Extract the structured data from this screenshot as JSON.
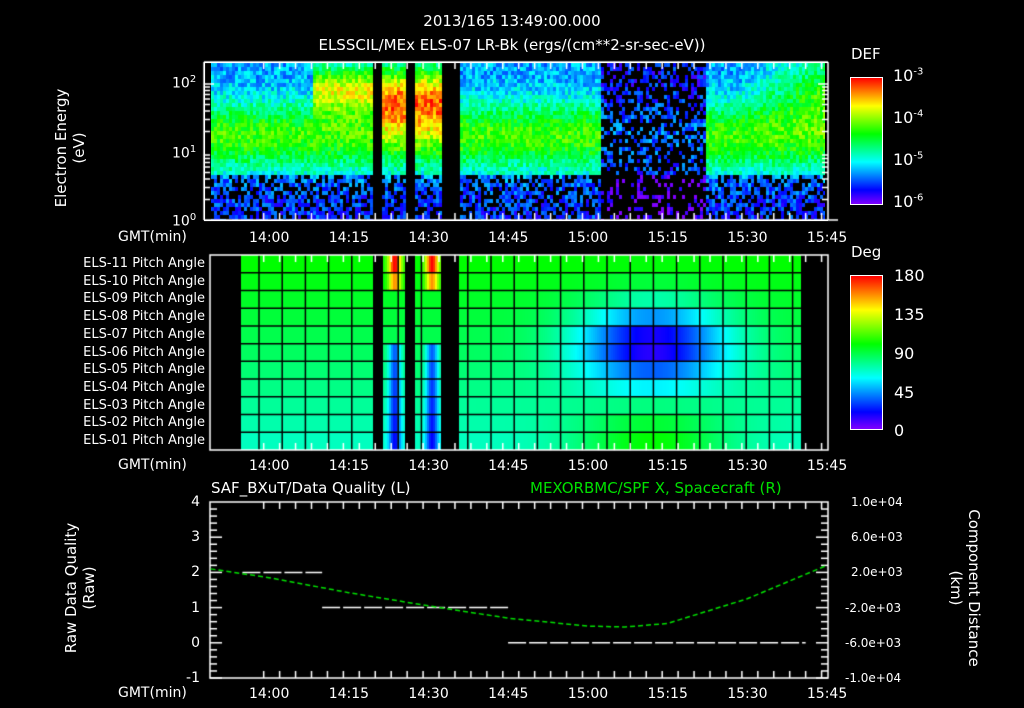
{
  "header": {
    "timestamp": "2013/165 13:49:00.000",
    "subtitle": "ELSSCIL/MEx ELS-07 LR-Bk  (ergs/(cm**2-sr-sec-eV))"
  },
  "time_axis": {
    "label": "GMT(min)",
    "ticks": [
      "14:00",
      "14:15",
      "14:30",
      "14:45",
      "15:00",
      "15:15",
      "15:30",
      "15:45"
    ]
  },
  "panel1": {
    "ylabel_line1": "Electron Energy",
    "ylabel_line2": "(eV)",
    "yticks": [
      {
        "base": "10",
        "exp": "2"
      },
      {
        "base": "10",
        "exp": "1"
      },
      {
        "base": "10",
        "exp": "0"
      }
    ],
    "colorbar": {
      "title": "DEF",
      "ticks": [
        {
          "base": "10",
          "exp": "-3"
        },
        {
          "base": "10",
          "exp": "-4"
        },
        {
          "base": "10",
          "exp": "-5"
        },
        {
          "base": "10",
          "exp": "-6"
        }
      ]
    }
  },
  "panel2": {
    "rows": [
      "ELS-11 Pitch Angle",
      "ELS-10 Pitch Angle",
      "ELS-09 Pitch Angle",
      "ELS-08 Pitch Angle",
      "ELS-07 Pitch Angle",
      "ELS-06 Pitch Angle",
      "ELS-05 Pitch Angle",
      "ELS-04 Pitch Angle",
      "ELS-03 Pitch Angle",
      "ELS-02 Pitch Angle",
      "ELS-01 Pitch Angle"
    ],
    "colorbar": {
      "title": "Deg",
      "ticks": [
        "180",
        "135",
        "90",
        "45",
        "0"
      ]
    }
  },
  "panel3": {
    "title_left": "SAF_BXuT/Data Quality (L)",
    "title_right": "MEXORBMC/SPF X, Spacecraft (R)",
    "title_right_color": "#00e000",
    "ylabel_left_line1": "Raw Data Quality",
    "ylabel_left_line2": "(Raw)",
    "ylabel_right_line1": "Component Distance",
    "ylabel_right_line2": "(km)",
    "yticks_left": [
      "4",
      "3",
      "2",
      "1",
      "0",
      "-1"
    ],
    "yticks_right": [
      "1.0e+04",
      "6.0e+03",
      "2.0e+03",
      "-2.0e+03",
      "-6.0e+03",
      "-1.0e+04"
    ]
  },
  "chart_data": [
    {
      "type": "heatmap",
      "title": "ELSSCIL/MEx ELS-07 LR-Bk (ergs/(cm**2-sr-sec-eV))",
      "xlabel": "GMT(min)",
      "ylabel": "Electron Energy (eV)",
      "yscale": "log",
      "ylim": [
        1,
        150
      ],
      "x_range": [
        "13:49",
        "15:45"
      ],
      "colorbar": {
        "label": "DEF",
        "scale": "log",
        "range": [
          1e-06,
          0.001
        ]
      },
      "data_gaps": [
        [
          "14:20",
          "14:22"
        ],
        [
          "14:25",
          "14:27"
        ],
        [
          "14:32",
          "14:35"
        ]
      ],
      "notes": "Elevated flux (yellow-red ~1e-4 to 1e-3) at 30-100 eV near 14:10-14:32 and at 15:40-15:45; depleted region 15:05-15:25"
    },
    {
      "type": "heatmap",
      "title": "Pitch Angle",
      "xlabel": "GMT(min)",
      "categories": [
        "ELS-11",
        "ELS-10",
        "ELS-09",
        "ELS-08",
        "ELS-07",
        "ELS-06",
        "ELS-05",
        "ELS-04",
        "ELS-03",
        "ELS-02",
        "ELS-01"
      ],
      "colorbar": {
        "label": "Deg",
        "range": [
          0,
          180
        ]
      },
      "x_range": [
        "13:53",
        "15:41"
      ],
      "notes": "Mostly 70-100 deg; minimum ~30-45 deg for ELS-06..ELS-09 around 15:05-15:25; spikes to ~170 deg on ELS-11 at 14:24 and 14:30"
    },
    {
      "type": "line",
      "title": "SAF_BXuT/Data Quality (L) / MEXORBMC/SPF X, Spacecraft (R)",
      "xlabel": "GMT(min)",
      "ylabel": "Raw Data Quality (Raw)",
      "ylabel_right": "Component Distance (km)",
      "ylim": [
        -1,
        4
      ],
      "ylim_right": [
        -10000,
        10000
      ],
      "series": [
        {
          "name": "Data Quality (L)",
          "color": "#ffffff",
          "segments": [
            {
              "x": [
                "13:55",
                "14:10"
              ],
              "y": 2
            },
            {
              "x": [
                "14:10",
                "14:45"
              ],
              "y": 1
            },
            {
              "x": [
                "14:45",
                "15:41"
              ],
              "y": 0
            }
          ]
        },
        {
          "name": "MEXORBMC/SPF X (R)",
          "color": "#00e000",
          "x": [
            "13:49",
            "14:00",
            "14:15",
            "14:30",
            "14:45",
            "15:00",
            "15:07",
            "15:15",
            "15:30",
            "15:45"
          ],
          "y": [
            2400,
            1400,
            -300,
            -1800,
            -3200,
            -4100,
            -4200,
            -3800,
            -1000,
            2800
          ]
        }
      ]
    }
  ]
}
